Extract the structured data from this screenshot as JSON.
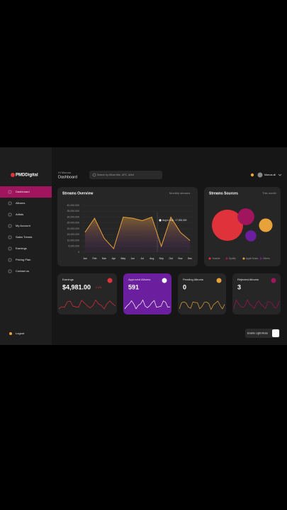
{
  "header": {
    "logo": "PMDDigital",
    "greeting": "Hi Marcus",
    "title": "Dashboard",
    "search": "Search by Album title, UPC, Artist",
    "user": "Marcus ali"
  },
  "sidebar": {
    "items": [
      "Dashboard",
      "Albums",
      "Artists",
      "My Account",
      "Sales Trends",
      "Earnings",
      "Pricing Plan",
      "Contact us"
    ],
    "logout": "Logout"
  },
  "streams_overview": {
    "type": "line",
    "title": "Streams Overview",
    "filter": "Monthly streams",
    "tooltip": "Aug to Sep : 17,000,000",
    "categories": [
      "Jan",
      "Feb",
      "Mar",
      "Apr",
      "May",
      "Jun",
      "Jul",
      "Aug",
      "Sep",
      "Oct",
      "Nov",
      "Dec"
    ],
    "series": [
      {
        "color": "#e8a23a",
        "values": [
          17000000,
          29000000,
          12000000,
          3000000,
          30000000,
          29000000,
          27000000,
          30000000,
          5000000,
          30000000,
          17000000,
          10000000
        ]
      }
    ],
    "ylim": [
      0,
      40000000
    ],
    "yticks": [
      0,
      {
        "value": 5000000,
        "label": "5,000,000"
      },
      {
        "value": 10000000,
        "label": "10,000,000"
      },
      {
        "value": 15000000,
        "label": "15,000,000"
      },
      {
        "value": 20000000,
        "label": "20,000,000"
      },
      {
        "value": 25000000,
        "label": "25,000,000"
      },
      {
        "value": 30000000,
        "label": "30,000,000"
      },
      {
        "value": 35000000,
        "label": "35,000,000"
      },
      {
        "value": 40000000,
        "label": "40,000,000"
      }
    ],
    "grid": true
  },
  "streams_sources": {
    "type": "bubble",
    "title": "Streams Sources",
    "filter": "This month",
    "categories": [
      "Youtube",
      "Spotify",
      "Apple Music",
      "Others"
    ],
    "values": [
      48,
      14,
      9,
      6
    ],
    "colors": [
      "#e0323a",
      "#a0155e",
      "#e8a23a",
      "#6b1f9e"
    ]
  },
  "cards": [
    {
      "title": "Earnings",
      "value": "$4,981.00",
      "change": "-2.4%"
    },
    {
      "title": "Approved Albums",
      "value": "591"
    },
    {
      "title": "Pending Albums",
      "value": "0"
    },
    {
      "title": "Rejected Albums",
      "value": "3"
    }
  ],
  "theme_toggle": "Enable Light Mode"
}
